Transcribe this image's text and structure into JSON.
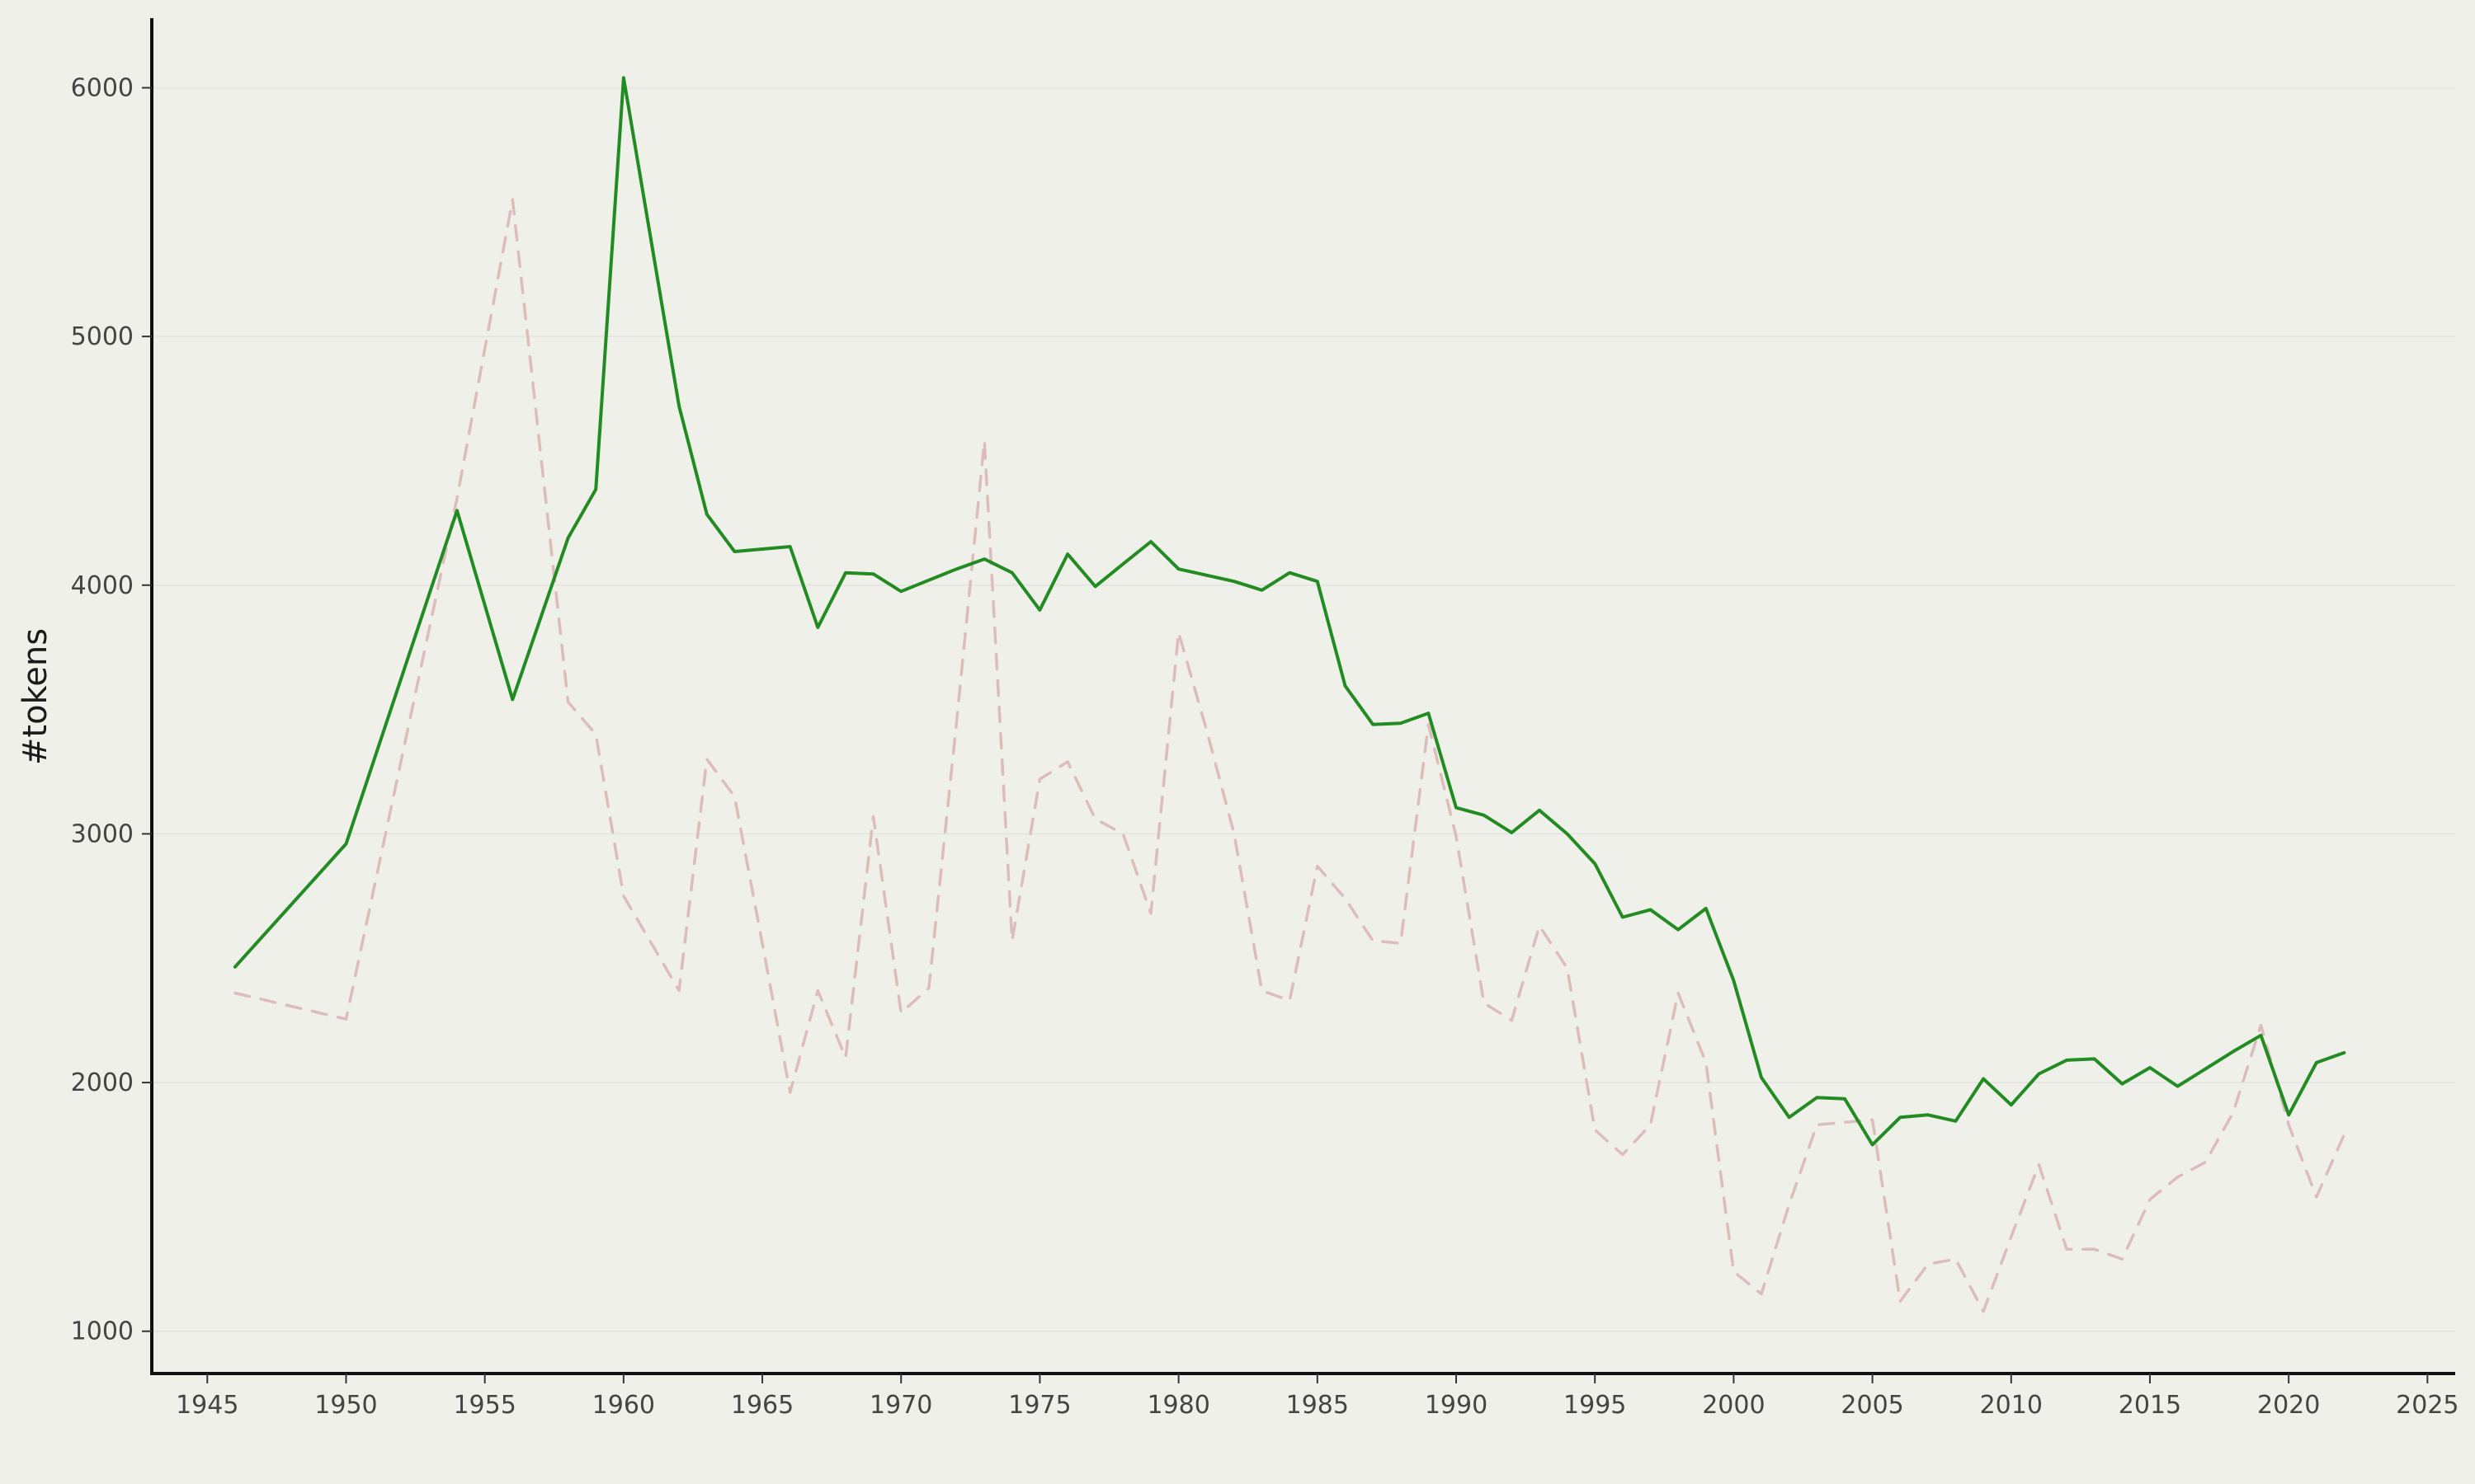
{
  "chart_data": {
    "type": "line",
    "title": "",
    "xlabel": "",
    "ylabel": "#tokens",
    "xlim": [
      1943,
      2026
    ],
    "ylim": [
      830,
      6280
    ],
    "x_ticks": [
      1945,
      1950,
      1955,
      1960,
      1965,
      1970,
      1975,
      1980,
      1985,
      1990,
      1995,
      2000,
      2005,
      2010,
      2015,
      2020,
      2025
    ],
    "y_ticks": [
      1000,
      2000,
      3000,
      4000,
      5000,
      6000
    ],
    "grid": "horizontal",
    "legend": "none",
    "x": [
      1946,
      1950,
      1954,
      1956,
      1958,
      1959,
      1960,
      1961,
      1962,
      1963,
      1964,
      1965,
      1966,
      1967,
      1968,
      1969,
      1970,
      1971,
      1972,
      1973,
      1974,
      1975,
      1976,
      1977,
      1978,
      1979,
      1980,
      1981,
      1982,
      1983,
      1984,
      1985,
      1986,
      1987,
      1988,
      1989,
      1990,
      1991,
      1992,
      1993,
      1994,
      1995,
      1996,
      1997,
      1998,
      1999,
      2000,
      2001,
      2002,
      2003,
      2004,
      2005,
      2006,
      2007,
      2008,
      2009,
      2010,
      2011,
      2012,
      2013,
      2014,
      2015,
      2016,
      2017,
      2018,
      2019,
      2020,
      2021,
      2022
    ],
    "series": [
      {
        "style": "solid",
        "color": "#228b22",
        "values": [
          2465,
          2960,
          4300,
          3540,
          4190,
          4385,
          6040,
          5380,
          4720,
          4285,
          4135,
          4145,
          4155,
          3830,
          4050,
          4045,
          3975,
          4020,
          4065,
          4105,
          4050,
          3900,
          4125,
          3995,
          4085,
          4175,
          4065,
          4040,
          4015,
          3980,
          4050,
          4015,
          3595,
          3440,
          3445,
          3485,
          3105,
          3075,
          3005,
          3095,
          3000,
          2880,
          2665,
          2695,
          2615,
          2700,
          2410,
          2020,
          1860,
          1940,
          1935,
          1750,
          1860,
          1870,
          1845,
          2015,
          1910,
          2035,
          2090,
          2095,
          1995,
          2060,
          1985,
          2055,
          2125,
          2190,
          1870,
          2080,
          2120
        ]
      },
      {
        "style": "dashed",
        "color": "#ddbcbc",
        "values": [
          2360,
          2255,
          4350,
          5550,
          3530,
          3400,
          2750,
          2560,
          2370,
          3300,
          3150,
          2560,
          1960,
          2370,
          2100,
          3070,
          2280,
          2380,
          3450,
          4580,
          2570,
          3220,
          3290,
          3060,
          3000,
          2680,
          3810,
          3420,
          3000,
          2370,
          2330,
          2870,
          2740,
          2570,
          2560,
          3440,
          2990,
          2320,
          2250,
          2630,
          2460,
          1810,
          1710,
          1830,
          2360,
          2080,
          1240,
          1150,
          1510,
          1830,
          1840,
          1850,
          1120,
          1270,
          1290,
          1080,
          1380,
          1670,
          1330,
          1330,
          1290,
          1530,
          1620,
          1680,
          1880,
          2230,
          1830,
          1540,
          1790
        ]
      }
    ]
  }
}
